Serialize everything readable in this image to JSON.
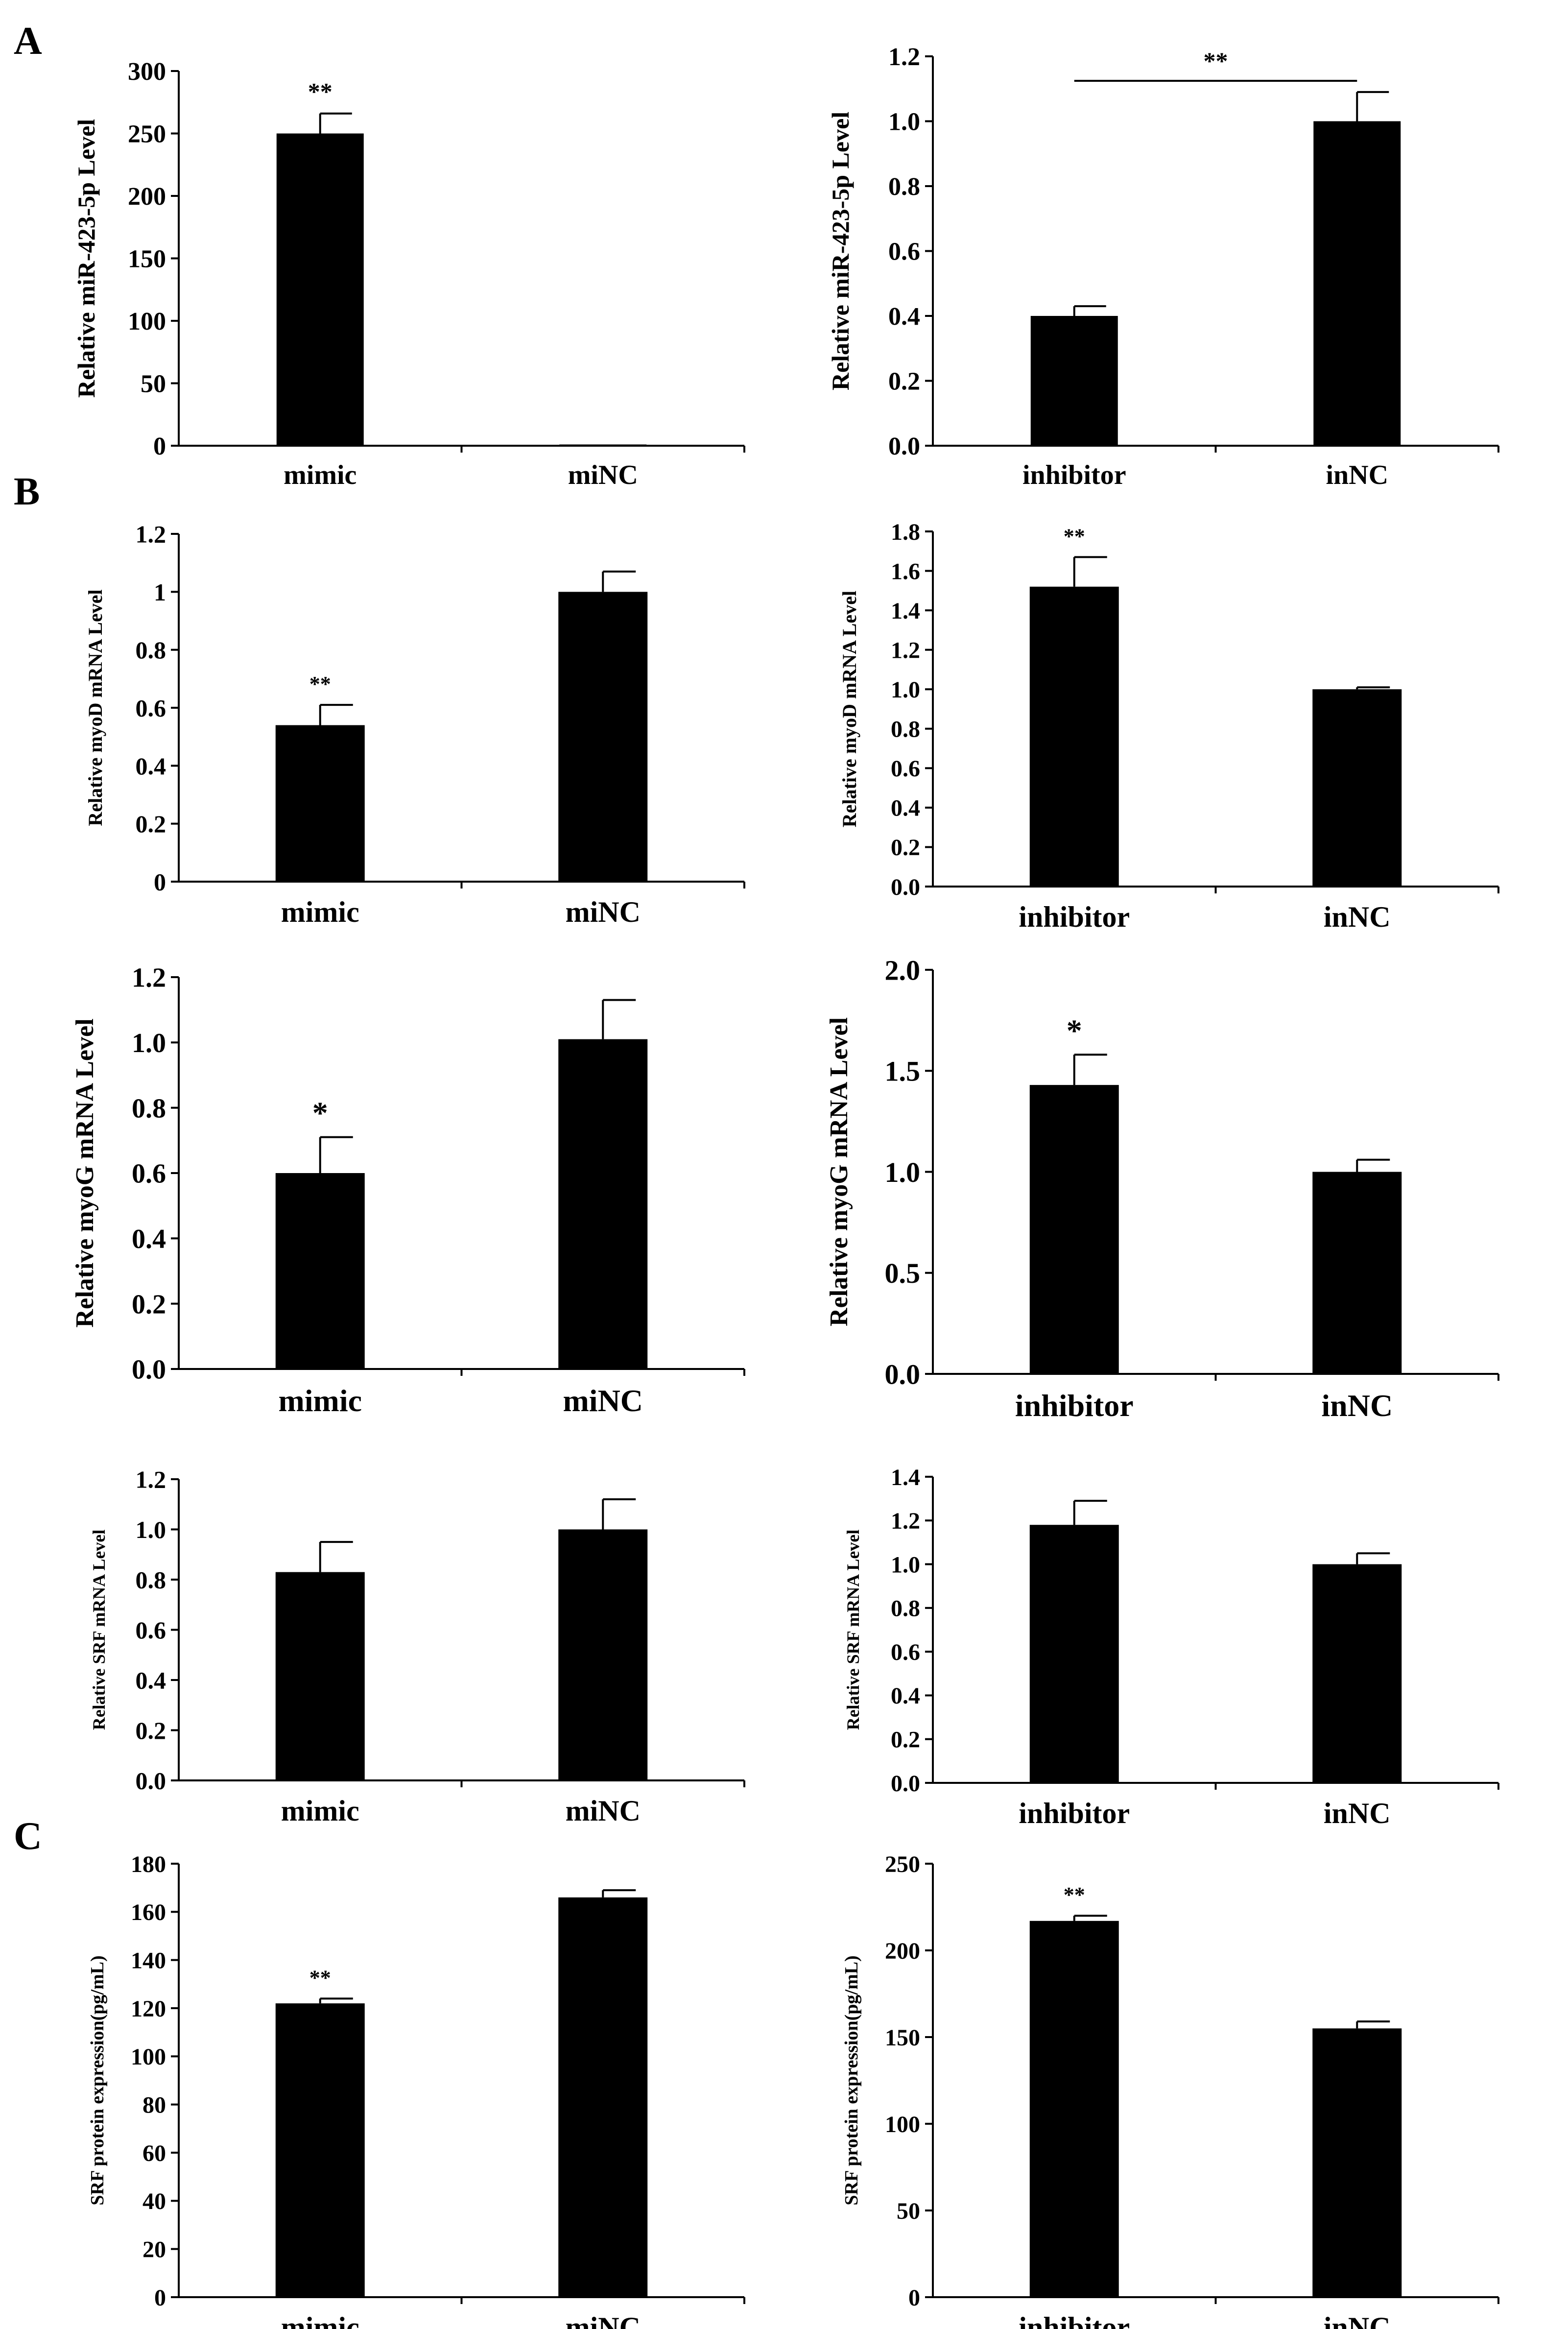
{
  "figure": {
    "panel_labels": [
      "A",
      "B",
      "C"
    ]
  },
  "chart_data": [
    {
      "type": "bar",
      "panel": "A",
      "categories": [
        "mimic",
        "miNC"
      ],
      "values": [
        250,
        1
      ],
      "errors": [
        16,
        0
      ],
      "sig": [
        "**",
        ""
      ],
      "ylabel": "Relative miR-423-5p Level",
      "ylim": [
        0,
        300
      ],
      "ticks": [
        "0",
        "50",
        "100",
        "150",
        "200",
        "250",
        "300"
      ],
      "bracket": ""
    },
    {
      "type": "bar",
      "panel": "A",
      "categories": [
        "inhibitor",
        "inNC"
      ],
      "values": [
        0.4,
        1.0
      ],
      "errors": [
        0.03,
        0.09
      ],
      "sig": [
        "",
        ""
      ],
      "ylabel": "Relative miR-423-5p Level",
      "ylim": [
        0,
        1.2
      ],
      "ticks": [
        "0.0",
        "0.2",
        "0.4",
        "0.6",
        "0.8",
        "1.0",
        "1.2"
      ],
      "bracket": "**"
    },
    {
      "type": "bar",
      "panel": "B",
      "categories": [
        "mimic",
        "miNC"
      ],
      "values": [
        0.54,
        1.0
      ],
      "errors": [
        0.07,
        0.07
      ],
      "sig": [
        "**",
        ""
      ],
      "ylabel": "Relative myoD mRNA Level",
      "ylim": [
        0,
        1.2
      ],
      "ticks": [
        "0",
        "0.2",
        "0.4",
        "0.6",
        "0.8",
        "1",
        "1.2"
      ],
      "bracket": ""
    },
    {
      "type": "bar",
      "panel": "B",
      "categories": [
        "inhibitor",
        "inNC"
      ],
      "values": [
        1.52,
        1.0
      ],
      "errors": [
        0.15,
        0.01
      ],
      "sig": [
        "**",
        ""
      ],
      "ylabel": "Relative myoD mRNA Level",
      "ylim": [
        0,
        1.8
      ],
      "ticks": [
        "0.0",
        "0.2",
        "0.4",
        "0.6",
        "0.8",
        "1.0",
        "1.2",
        "1.4",
        "1.6",
        "1.8"
      ],
      "bracket": ""
    },
    {
      "type": "bar",
      "panel": "B",
      "categories": [
        "mimic",
        "miNC"
      ],
      "values": [
        0.6,
        1.01
      ],
      "errors": [
        0.11,
        0.12
      ],
      "sig": [
        "*",
        ""
      ],
      "ylabel": "Relative myoG mRNA Level",
      "ylim": [
        0,
        1.2
      ],
      "ticks": [
        "0.0",
        "0.2",
        "0.4",
        "0.6",
        "0.8",
        "1.0",
        "1.2"
      ],
      "bracket": ""
    },
    {
      "type": "bar",
      "panel": "B",
      "categories": [
        "inhibitor",
        "inNC"
      ],
      "values": [
        1.43,
        1.0
      ],
      "errors": [
        0.15,
        0.06
      ],
      "sig": [
        "*",
        ""
      ],
      "ylabel": "Relative myoG mRNA Level",
      "ylim": [
        0,
        2.0
      ],
      "ticks": [
        "0.0",
        "0.5",
        "1.0",
        "1.5",
        "2.0"
      ],
      "bracket": ""
    },
    {
      "type": "bar",
      "panel": "B",
      "categories": [
        "mimic",
        "miNC"
      ],
      "values": [
        0.83,
        1.0
      ],
      "errors": [
        0.12,
        0.12
      ],
      "sig": [
        "",
        ""
      ],
      "ylabel": "Relative SRF mRNA Level",
      "ylim": [
        0,
        1.2
      ],
      "ticks": [
        "0.0",
        "0.2",
        "0.4",
        "0.6",
        "0.8",
        "1.0",
        "1.2"
      ],
      "bracket": ""
    },
    {
      "type": "bar",
      "panel": "B",
      "categories": [
        "inhibitor",
        "inNC"
      ],
      "values": [
        1.18,
        1.0
      ],
      "errors": [
        0.11,
        0.05
      ],
      "sig": [
        "",
        ""
      ],
      "ylabel": "Relative SRF mRNA Level",
      "ylim": [
        0,
        1.4
      ],
      "ticks": [
        "0.0",
        "0.2",
        "0.4",
        "0.6",
        "0.8",
        "1.0",
        "1.2",
        "1.4"
      ],
      "bracket": ""
    },
    {
      "type": "bar",
      "panel": "C",
      "categories": [
        "mimic",
        "miNC"
      ],
      "values": [
        122,
        166
      ],
      "errors": [
        2,
        3
      ],
      "sig": [
        "**",
        ""
      ],
      "ylabel": "SRF protein expression(pg/mL)",
      "ylim": [
        0,
        180
      ],
      "ticks": [
        "0",
        "20",
        "40",
        "60",
        "80",
        "100",
        "120",
        "140",
        "160",
        "180"
      ],
      "bracket": ""
    },
    {
      "type": "bar",
      "panel": "C",
      "categories": [
        "inhibitor",
        "inNC"
      ],
      "values": [
        217,
        155
      ],
      "errors": [
        3,
        4
      ],
      "sig": [
        "**",
        ""
      ],
      "ylabel": "SRF protein expression(pg/mL)",
      "ylim": [
        0,
        250
      ],
      "ticks": [
        "0",
        "50",
        "100",
        "150",
        "200",
        "250"
      ],
      "bracket": ""
    }
  ]
}
